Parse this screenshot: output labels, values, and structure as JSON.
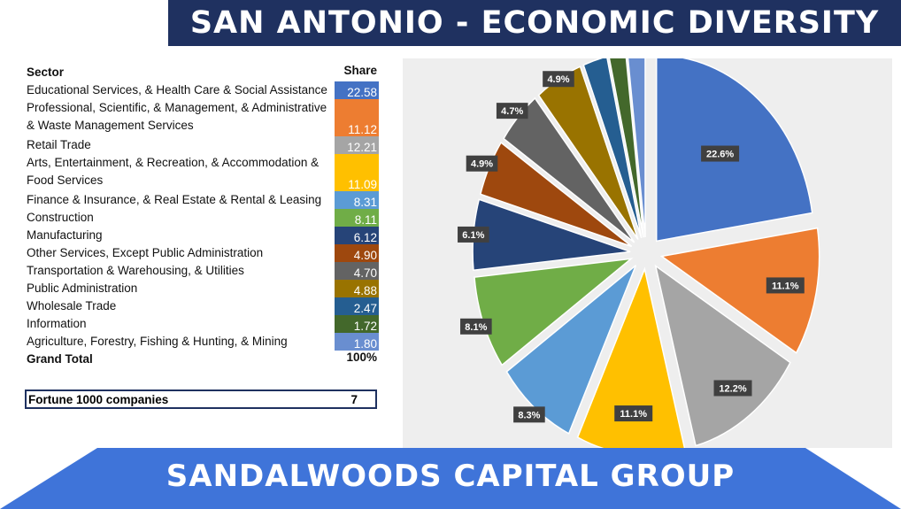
{
  "title": "SAN ANTONIO - ECONOMIC DIVERSITY",
  "footer": "SANDALWOODS CAPITAL GROUP",
  "table": {
    "header_sector": "Sector",
    "header_share": "Share",
    "rows": [
      {
        "label": "Educational Services, & Health Care & Social Assistance",
        "value": "22.58",
        "color": "#4472c4"
      },
      {
        "label": "Professional, Scientific, & Management, & Administrative & Waste Management Services",
        "value": "11.12",
        "color": "#ed7d31"
      },
      {
        "label": "Retail Trade",
        "value": "12.21",
        "color": "#a5a5a5"
      },
      {
        "label": "Arts, Entertainment, & Recreation, & Accommodation & Food Services",
        "value": "11.09",
        "color": "#ffc000"
      },
      {
        "label": "Finance & Insurance, & Real Estate & Rental & Leasing",
        "value": "8.31",
        "color": "#5b9bd5"
      },
      {
        "label": "Construction",
        "value": "8.11",
        "color": "#70ad47"
      },
      {
        "label": "Manufacturing",
        "value": "6.12",
        "color": "#264478"
      },
      {
        "label": "Other Services, Except Public Administration",
        "value": "4.90",
        "color": "#9e480e"
      },
      {
        "label": "Transportation & Warehousing, & Utilities",
        "value": "4.70",
        "color": "#636363"
      },
      {
        "label": "Public Administration",
        "value": "4.88",
        "color": "#997300"
      },
      {
        "label": "Wholesale Trade",
        "value": "2.47",
        "color": "#255e91"
      },
      {
        "label": "Information",
        "value": "1.72",
        "color": "#43682b"
      },
      {
        "label": "Agriculture, Forestry, Fishing & Hunting, & Mining",
        "value": "1.80",
        "color": "#698ed0"
      }
    ],
    "grand_total_label": "Grand Total",
    "grand_total_value": "100%"
  },
  "fortune": {
    "label": "Fortune 1000 companies",
    "value": "7"
  },
  "chart_data": {
    "type": "pie",
    "labels": [
      "Educational Services, & Health Care & Social Assistance",
      "Professional, Scientific, & Management, & Administrative & Waste Management Services",
      "Retail Trade",
      "Arts, Entertainment, & Recreation, & Accommodation & Food Services",
      "Finance & Insurance, & Real Estate & Rental & Leasing",
      "Construction",
      "Manufacturing",
      "Other Services, Except Public Administration",
      "Transportation & Warehousing, & Utilities",
      "Public Administration",
      "Wholesale Trade",
      "Information",
      "Agriculture, Forestry, Fishing & Hunting, & Mining"
    ],
    "values": [
      22.58,
      11.12,
      12.21,
      11.09,
      8.31,
      8.11,
      6.12,
      4.9,
      4.7,
      4.88,
      2.47,
      1.72,
      1.8
    ],
    "data_labels": [
      "22.6%",
      "11.1%",
      "12.2%",
      "11.1%",
      "8.3%",
      "8.1%",
      "6.1%",
      "4.9%",
      "4.7%",
      "4.9%",
      "2.5%",
      "1.7%",
      "1.8%"
    ],
    "colors": [
      "#4472c4",
      "#ed7d31",
      "#a5a5a5",
      "#ffc000",
      "#5b9bd5",
      "#70ad47",
      "#264478",
      "#9e480e",
      "#636363",
      "#997300",
      "#255e91",
      "#43682b",
      "#698ed0"
    ],
    "exploded": true,
    "legend": "none"
  }
}
